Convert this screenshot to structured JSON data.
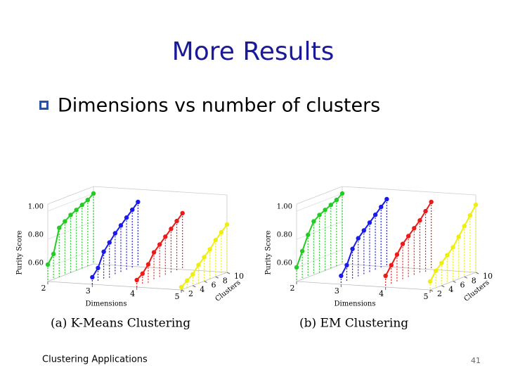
{
  "slide": {
    "title": "More Results",
    "bullet": "Dimensions vs number of clusters",
    "footer": "Clustering Applications",
    "page_number": "41"
  },
  "chart_data": [
    {
      "type": "line3d",
      "caption": "(a) K-Means Clustering",
      "xlabel": "Dimensions",
      "ylabel": "Clusters",
      "zlabel": "Purity Score",
      "xlim": [
        2,
        5
      ],
      "xticks": [
        2,
        3,
        4,
        5
      ],
      "y": [
        2,
        3,
        4,
        5,
        6,
        7,
        8,
        9,
        10
      ],
      "ylim": [
        2,
        10
      ],
      "yticks": [
        2,
        4,
        6,
        8,
        10
      ],
      "zlim": [
        0.5,
        1.05
      ],
      "zticks": [
        {
          "value": 0.6,
          "label": "0.60"
        },
        {
          "value": 0.8,
          "label": "0.80"
        },
        {
          "value": 1.0,
          "label": "1.00"
        }
      ],
      "series": [
        {
          "dimension": 2,
          "color": "#22cc22",
          "values": [
            0.62,
            0.68,
            0.85,
            0.88,
            0.91,
            0.93,
            0.95,
            0.97,
            1.0
          ]
        },
        {
          "dimension": 3,
          "color": "#1a1aee",
          "values": [
            0.55,
            0.6,
            0.7,
            0.75,
            0.8,
            0.84,
            0.88,
            0.92,
            0.96
          ]
        },
        {
          "dimension": 4,
          "color": "#ee1a1a",
          "values": [
            0.55,
            0.58,
            0.63,
            0.7,
            0.74,
            0.78,
            0.82,
            0.86,
            0.9
          ]
        },
        {
          "dimension": 5,
          "color": "#eeee11",
          "values": [
            0.52,
            0.55,
            0.58,
            0.63,
            0.67,
            0.71,
            0.76,
            0.8,
            0.84
          ]
        }
      ]
    },
    {
      "type": "line3d",
      "caption": "(b) EM Clustering",
      "xlabel": "Dimensions",
      "ylabel": "Clusters",
      "zlabel": "Purity Score",
      "xlim": [
        2,
        5
      ],
      "xticks": [
        2,
        3,
        4,
        5
      ],
      "y": [
        2,
        3,
        4,
        5,
        6,
        7,
        8,
        9,
        10
      ],
      "ylim": [
        2,
        10
      ],
      "yticks": [
        2,
        4,
        6,
        8,
        10
      ],
      "zlim": [
        0.5,
        1.05
      ],
      "zticks": [
        {
          "value": 0.6,
          "label": "0.60"
        },
        {
          "value": 0.8,
          "label": "0.80"
        },
        {
          "value": 1.0,
          "label": "1.00"
        }
      ],
      "series": [
        {
          "dimension": 2,
          "color": "#22cc22",
          "values": [
            0.6,
            0.7,
            0.8,
            0.88,
            0.91,
            0.93,
            0.95,
            0.97,
            1.0
          ]
        },
        {
          "dimension": 3,
          "color": "#1a1aee",
          "values": [
            0.56,
            0.62,
            0.72,
            0.78,
            0.82,
            0.86,
            0.9,
            0.94,
            0.98
          ]
        },
        {
          "dimension": 4,
          "color": "#ee1a1a",
          "values": [
            0.58,
            0.64,
            0.7,
            0.76,
            0.8,
            0.84,
            0.88,
            0.93,
            0.98
          ]
        },
        {
          "dimension": 5,
          "color": "#eeee11",
          "values": [
            0.56,
            0.62,
            0.66,
            0.7,
            0.74,
            0.8,
            0.86,
            0.92,
            0.98
          ]
        }
      ]
    }
  ]
}
